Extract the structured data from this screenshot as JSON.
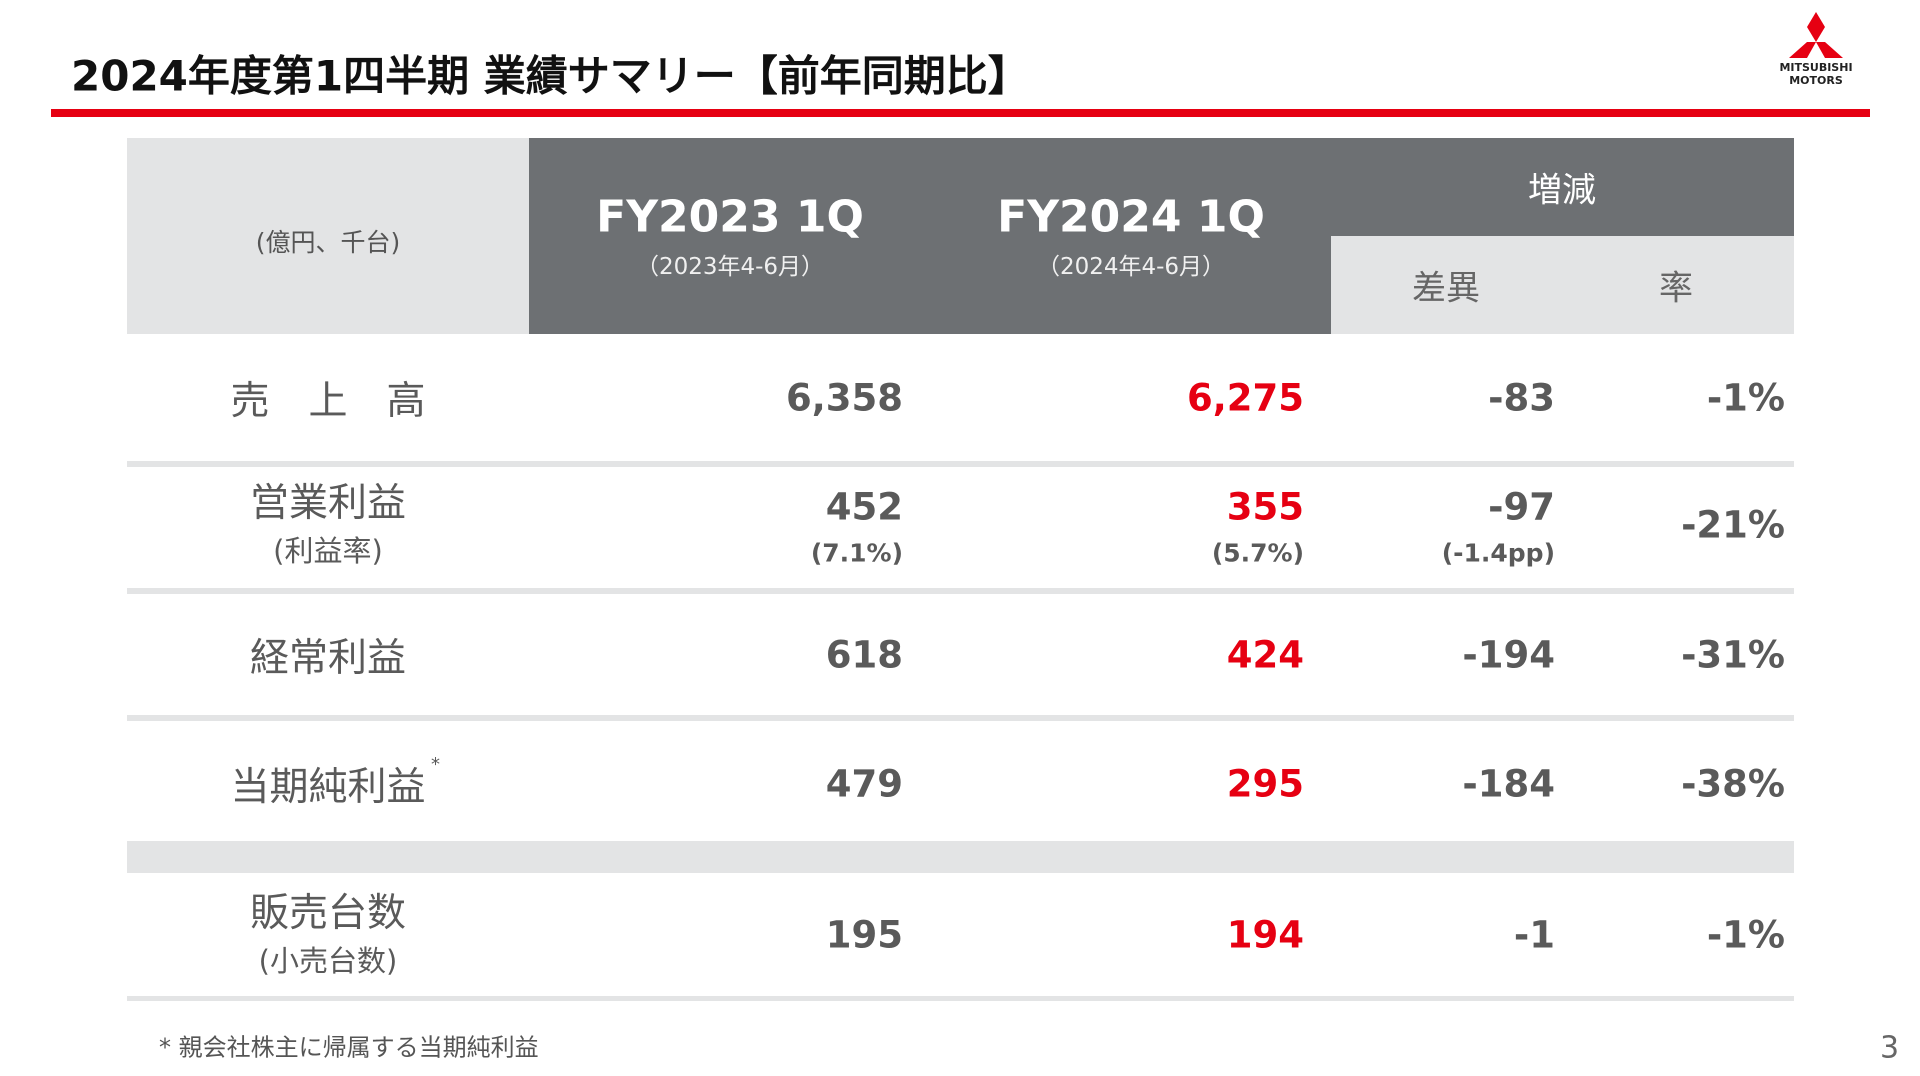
{
  "header": {
    "title": "2024年度第1四半期 業績サマリー【前年同期比】",
    "logo": [
      "MITSUBISHI",
      "MOTORS"
    ]
  },
  "table": {
    "unit": "(億円、千台)",
    "columns": [
      {
        "label": "FY2023 1Q",
        "sub": "（2023年4-6月）"
      },
      {
        "label": "FY2024 1Q",
        "sub": "（2024年4-6月）"
      }
    ],
    "change": {
      "label": "増減",
      "sub": [
        "差異",
        "率"
      ]
    },
    "rows": [
      {
        "label": "売　上　高",
        "cells": [
          "6,358",
          "6,275",
          "-83",
          "-1%"
        ]
      },
      {
        "label": "営業利益",
        "sublabel": "(利益率)",
        "cells": [
          "452",
          "355",
          "-97",
          "-21%"
        ],
        "subcells": [
          "(7.1%)",
          "(5.7%)",
          "(-1.4pp)"
        ]
      },
      {
        "label": "経常利益",
        "cells": [
          "618",
          "424",
          "-194",
          "-31%"
        ]
      },
      {
        "label": "当期純利益",
        "marker": "*",
        "cells": [
          "479",
          "295",
          "-184",
          "-38%"
        ]
      },
      {
        "label": "販売台数",
        "sublabel": "(小売台数)",
        "cells": [
          "195",
          "194",
          "-1",
          "-1%"
        ]
      }
    ]
  },
  "footnote": "* 親会社株主に帰属する当期純利益",
  "page_number": "3"
}
